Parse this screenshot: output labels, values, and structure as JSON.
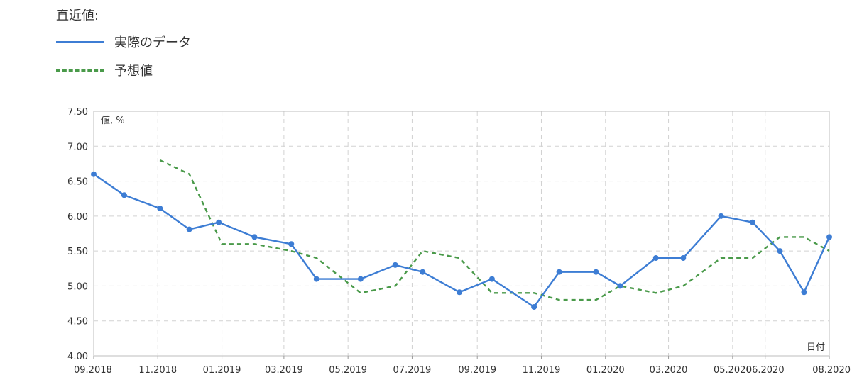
{
  "heading": "直近値:",
  "legend": [
    {
      "label": "実際のデータ",
      "color": "#3d7dd4",
      "style": "solid"
    },
    {
      "label": "予想値",
      "color": "#4a9a4a",
      "style": "dashed"
    }
  ],
  "chart_data": {
    "type": "line",
    "ylabel": "値, %",
    "xlabel": "日付",
    "ylim": [
      4.0,
      7.5
    ],
    "yticks": [
      "4.00",
      "4.50",
      "5.00",
      "5.50",
      "6.00",
      "6.50",
      "7.00",
      "7.50"
    ],
    "xlim": [
      "2018-09-01",
      "2020-08-01"
    ],
    "xticks": [
      {
        "date": "2018-09-01",
        "label": "09.2018"
      },
      {
        "date": "2018-11-01",
        "label": "11.2018"
      },
      {
        "date": "2019-01-01",
        "label": "01.2019"
      },
      {
        "date": "2019-03-01",
        "label": "03.2019"
      },
      {
        "date": "2019-05-01",
        "label": "05.2019"
      },
      {
        "date": "2019-07-01",
        "label": "07.2019"
      },
      {
        "date": "2019-09-01",
        "label": "09.2019"
      },
      {
        "date": "2019-11-01",
        "label": "11.2019"
      },
      {
        "date": "2020-01-01",
        "label": "01.2020"
      },
      {
        "date": "2020-03-01",
        "label": "03.2020"
      },
      {
        "date": "2020-05-01",
        "label": "05.2020"
      },
      {
        "date": "2020-06-01",
        "label": "06.2020"
      },
      {
        "date": "2020-08-01",
        "label": "08.2020"
      }
    ],
    "grid": true,
    "series": [
      {
        "name": "実際のデータ",
        "color": "#3d7dd4",
        "style": "solid",
        "markers": true,
        "points": [
          {
            "x": "2018-09-01",
            "y": 6.6
          },
          {
            "x": "2018-09-30",
            "y": 6.3
          },
          {
            "x": "2018-11-03",
            "y": 6.11
          },
          {
            "x": "2018-12-01",
            "y": 5.81
          },
          {
            "x": "2018-12-29",
            "y": 5.91
          },
          {
            "x": "2019-02-01",
            "y": 5.7
          },
          {
            "x": "2019-03-08",
            "y": 5.6
          },
          {
            "x": "2019-04-01",
            "y": 5.1
          },
          {
            "x": "2019-05-13",
            "y": 5.1
          },
          {
            "x": "2019-06-15",
            "y": 5.3
          },
          {
            "x": "2019-07-11",
            "y": 5.2
          },
          {
            "x": "2019-08-15",
            "y": 4.91
          },
          {
            "x": "2019-09-15",
            "y": 5.1
          },
          {
            "x": "2019-10-25",
            "y": 4.7
          },
          {
            "x": "2019-11-18",
            "y": 5.2
          },
          {
            "x": "2019-12-23",
            "y": 5.2
          },
          {
            "x": "2020-01-15",
            "y": 5.0
          },
          {
            "x": "2020-02-18",
            "y": 5.4
          },
          {
            "x": "2020-03-15",
            "y": 5.4
          },
          {
            "x": "2020-04-20",
            "y": 6.0
          },
          {
            "x": "2020-05-20",
            "y": 5.91
          },
          {
            "x": "2020-06-15",
            "y": 5.5
          },
          {
            "x": "2020-07-08",
            "y": 4.91
          },
          {
            "x": "2020-08-01",
            "y": 5.7
          }
        ]
      },
      {
        "name": "予想値",
        "color": "#4a9a4a",
        "style": "dashed",
        "markers": false,
        "points": [
          {
            "x": "2018-11-03",
            "y": 6.8
          },
          {
            "x": "2018-12-01",
            "y": 6.6
          },
          {
            "x": "2019-01-01",
            "y": 5.6
          },
          {
            "x": "2019-02-01",
            "y": 5.6
          },
          {
            "x": "2019-03-08",
            "y": 5.5
          },
          {
            "x": "2019-04-01",
            "y": 5.4
          },
          {
            "x": "2019-05-13",
            "y": 4.9
          },
          {
            "x": "2019-06-15",
            "y": 5.0
          },
          {
            "x": "2019-07-11",
            "y": 5.5
          },
          {
            "x": "2019-08-15",
            "y": 5.4
          },
          {
            "x": "2019-09-15",
            "y": 4.9
          },
          {
            "x": "2019-10-25",
            "y": 4.9
          },
          {
            "x": "2019-11-18",
            "y": 4.8
          },
          {
            "x": "2019-12-23",
            "y": 4.8
          },
          {
            "x": "2020-01-15",
            "y": 5.0
          },
          {
            "x": "2020-02-18",
            "y": 4.9
          },
          {
            "x": "2020-03-15",
            "y": 5.0
          },
          {
            "x": "2020-04-20",
            "y": 5.4
          },
          {
            "x": "2020-05-20",
            "y": 5.4
          },
          {
            "x": "2020-06-15",
            "y": 5.7
          },
          {
            "x": "2020-07-08",
            "y": 5.7
          },
          {
            "x": "2020-08-01",
            "y": 5.5
          }
        ]
      }
    ]
  }
}
